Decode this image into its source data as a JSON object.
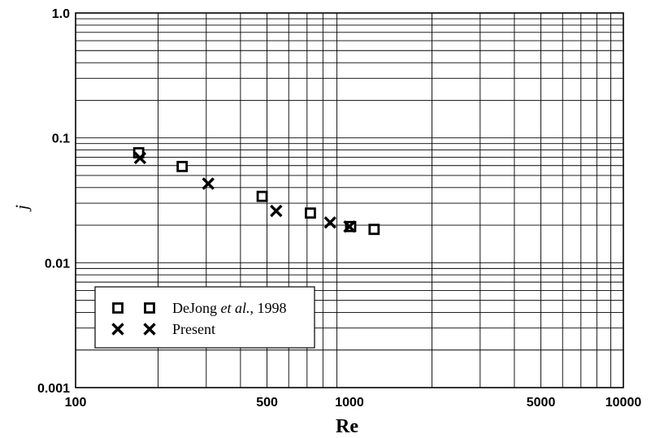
{
  "chart_data": {
    "type": "scatter",
    "xlabel": "Re",
    "ylabel": "j",
    "x_scale": "log",
    "y_scale": "log",
    "xlim": [
      100,
      10000
    ],
    "ylim": [
      0.001,
      1.0
    ],
    "grid": true,
    "legend_position": "bottom-left",
    "x_ticks": [
      {
        "value": 100,
        "label": "100"
      },
      {
        "value": 500,
        "label": "500"
      },
      {
        "value": 1000,
        "label": "1000"
      },
      {
        "value": 5000,
        "label": "5000"
      },
      {
        "value": 10000,
        "label": "10000"
      }
    ],
    "y_ticks": [
      {
        "value": 0.001,
        "label": "0.001"
      },
      {
        "value": 0.01,
        "label": "0.01"
      },
      {
        "value": 0.1,
        "label": "0.1"
      },
      {
        "value": 1.0,
        "label": "1.0"
      }
    ],
    "series": [
      {
        "name": "DeJong et al., 1998",
        "legend_parts": [
          "DeJong ",
          "et al.",
          ", 1998"
        ],
        "marker": "square",
        "points": [
          {
            "x": 170,
            "y": 0.076
          },
          {
            "x": 245,
            "y": 0.059
          },
          {
            "x": 480,
            "y": 0.034
          },
          {
            "x": 720,
            "y": 0.025
          },
          {
            "x": 1010,
            "y": 0.0195
          },
          {
            "x": 1230,
            "y": 0.0185
          }
        ]
      },
      {
        "name": "Present",
        "legend_parts": [
          "Present",
          "",
          ""
        ],
        "marker": "x",
        "points": [
          {
            "x": 172,
            "y": 0.069
          },
          {
            "x": 305,
            "y": 0.043
          },
          {
            "x": 540,
            "y": 0.026
          },
          {
            "x": 850,
            "y": 0.021
          },
          {
            "x": 1000,
            "y": 0.0195
          }
        ]
      }
    ]
  }
}
